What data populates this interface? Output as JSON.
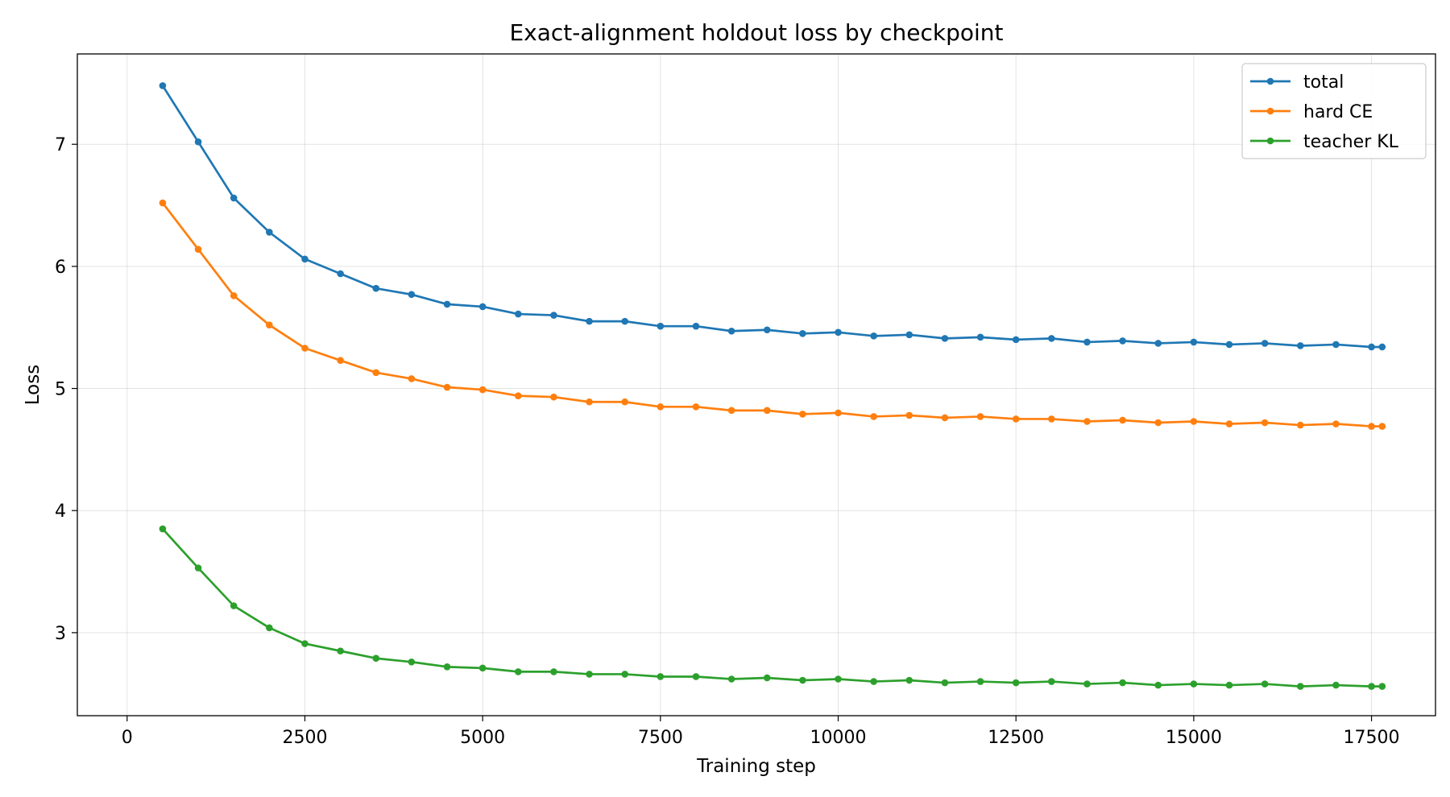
{
  "chart_data": {
    "type": "line",
    "title": "Exact-alignment holdout loss by checkpoint",
    "xlabel": "Training step",
    "ylabel": "Loss",
    "xlim": [
      -700,
      18400
    ],
    "ylim": [
      2.32,
      7.74
    ],
    "xticks": [
      0,
      2500,
      5000,
      7500,
      10000,
      12500,
      15000,
      17500
    ],
    "yticks": [
      3,
      4,
      5,
      6,
      7
    ],
    "grid": true,
    "legend_position": "top-right",
    "x": [
      500,
      1000,
      1500,
      2000,
      2500,
      3000,
      3500,
      4000,
      4500,
      5000,
      5500,
      6000,
      6500,
      7000,
      7500,
      8000,
      8500,
      9000,
      9500,
      10000,
      10500,
      11000,
      11500,
      12000,
      12500,
      13000,
      13500,
      14000,
      14500,
      15000,
      15500,
      16000,
      16500,
      17000,
      17500,
      17650
    ],
    "series": [
      {
        "name": "total",
        "color": "#1f77b4",
        "values": [
          7.48,
          7.02,
          6.56,
          6.28,
          6.06,
          5.94,
          5.82,
          5.77,
          5.69,
          5.67,
          5.61,
          5.6,
          5.55,
          5.55,
          5.51,
          5.51,
          5.47,
          5.48,
          5.45,
          5.46,
          5.43,
          5.44,
          5.41,
          5.42,
          5.4,
          5.41,
          5.38,
          5.39,
          5.37,
          5.38,
          5.36,
          5.37,
          5.35,
          5.36,
          5.34,
          5.34
        ]
      },
      {
        "name": "hard CE",
        "color": "#ff7f0e",
        "values": [
          6.52,
          6.14,
          5.76,
          5.52,
          5.33,
          5.23,
          5.13,
          5.08,
          5.01,
          4.99,
          4.94,
          4.93,
          4.89,
          4.89,
          4.85,
          4.85,
          4.82,
          4.82,
          4.79,
          4.8,
          4.77,
          4.78,
          4.76,
          4.77,
          4.75,
          4.75,
          4.73,
          4.74,
          4.72,
          4.73,
          4.71,
          4.72,
          4.7,
          4.71,
          4.69,
          4.69
        ]
      },
      {
        "name": "teacher KL",
        "color": "#2ca02c",
        "values": [
          3.85,
          3.53,
          3.22,
          3.04,
          2.91,
          2.85,
          2.79,
          2.76,
          2.72,
          2.71,
          2.68,
          2.68,
          2.66,
          2.66,
          2.64,
          2.64,
          2.62,
          2.63,
          2.61,
          2.62,
          2.6,
          2.61,
          2.59,
          2.6,
          2.59,
          2.6,
          2.58,
          2.59,
          2.57,
          2.58,
          2.57,
          2.58,
          2.56,
          2.57,
          2.56,
          2.56
        ]
      }
    ]
  }
}
